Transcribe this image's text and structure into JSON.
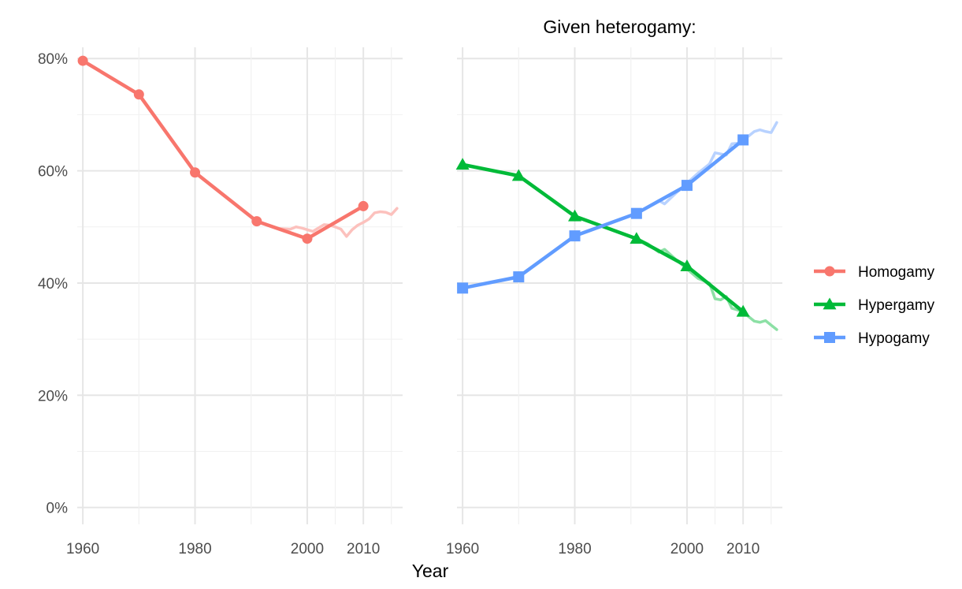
{
  "chart_data": {
    "type": "line",
    "xlabel": "Year",
    "y_ticks": [
      "0%",
      "20%",
      "40%",
      "60%",
      "80%"
    ],
    "y_tick_values": [
      0,
      0.2,
      0.4,
      0.6,
      0.8
    ],
    "ylim": [
      -0.03,
      0.82
    ],
    "x_ticks": [
      "1960",
      "1980",
      "2000",
      "2010"
    ],
    "x_tick_values": [
      1960,
      1980,
      2000,
      2010
    ],
    "xlim": [
      1959,
      2017
    ],
    "grid": true,
    "legend_position": "right",
    "legend": [
      {
        "label": "Homogamy",
        "color": "#F8766D",
        "shape": "circle"
      },
      {
        "label": "Hypergamy",
        "color": "#00BA38",
        "shape": "triangle"
      },
      {
        "label": "Hypogamy",
        "color": "#619CFF",
        "shape": "square"
      }
    ],
    "panels": [
      {
        "title": "",
        "series": [
          {
            "legend": "Homogamy",
            "color": "#F8766D",
            "shape": "circle",
            "x": [
              1960,
              1970,
              1980,
              1991,
              2000,
              2010
            ],
            "y": [
              0.796,
              0.736,
              0.597,
              0.51,
              0.479,
              0.537
            ],
            "annual_x": [
              1991,
              1993,
              1995,
              1997,
              1998,
              1999,
              2000,
              2001,
              2002,
              2003,
              2004,
              2005,
              2006,
              2007,
              2008,
              2009,
              2010,
              2011,
              2012,
              2013,
              2014,
              2015,
              2016
            ],
            "annual_y": [
              0.51,
              0.503,
              0.497,
              0.496,
              0.5,
              0.498,
              0.495,
              0.492,
              0.498,
              0.504,
              0.503,
              0.5,
              0.496,
              0.483,
              0.495,
              0.503,
              0.508,
              0.514,
              0.525,
              0.527,
              0.526,
              0.522,
              0.533
            ]
          }
        ]
      },
      {
        "title": "Given heterogamy:",
        "series": [
          {
            "legend": "Hypergamy",
            "color": "#00BA38",
            "shape": "triangle",
            "x": [
              1960,
              1970,
              1980,
              1991,
              2000,
              2010
            ],
            "y": [
              0.611,
              0.591,
              0.519,
              0.479,
              0.43,
              0.349
            ],
            "annual_x": [
              1991,
              1993,
              1995,
              1996,
              1998,
              2000,
              2002,
              2004,
              2005,
              2006,
              2007,
              2008,
              2009,
              2010,
              2011,
              2012,
              2013,
              2014,
              2015,
              2016
            ],
            "annual_y": [
              0.479,
              0.47,
              0.455,
              0.46,
              0.442,
              0.425,
              0.408,
              0.4,
              0.372,
              0.37,
              0.376,
              0.355,
              0.352,
              0.349,
              0.34,
              0.332,
              0.33,
              0.333,
              0.325,
              0.317
            ]
          },
          {
            "legend": "Hypogamy",
            "color": "#619CFF",
            "shape": "square",
            "x": [
              1960,
              1970,
              1980,
              1991,
              2000,
              2010
            ],
            "y": [
              0.391,
              0.411,
              0.484,
              0.524,
              0.574,
              0.655
            ],
            "annual_x": [
              1991,
              1993,
              1995,
              1996,
              1998,
              2000,
              2002,
              2004,
              2005,
              2006,
              2007,
              2008,
              2009,
              2010,
              2011,
              2012,
              2013,
              2014,
              2015,
              2016
            ],
            "annual_y": [
              0.524,
              0.535,
              0.547,
              0.541,
              0.56,
              0.578,
              0.596,
              0.612,
              0.632,
              0.63,
              0.628,
              0.648,
              0.649,
              0.655,
              0.662,
              0.67,
              0.673,
              0.67,
              0.668,
              0.686
            ]
          }
        ]
      }
    ]
  }
}
